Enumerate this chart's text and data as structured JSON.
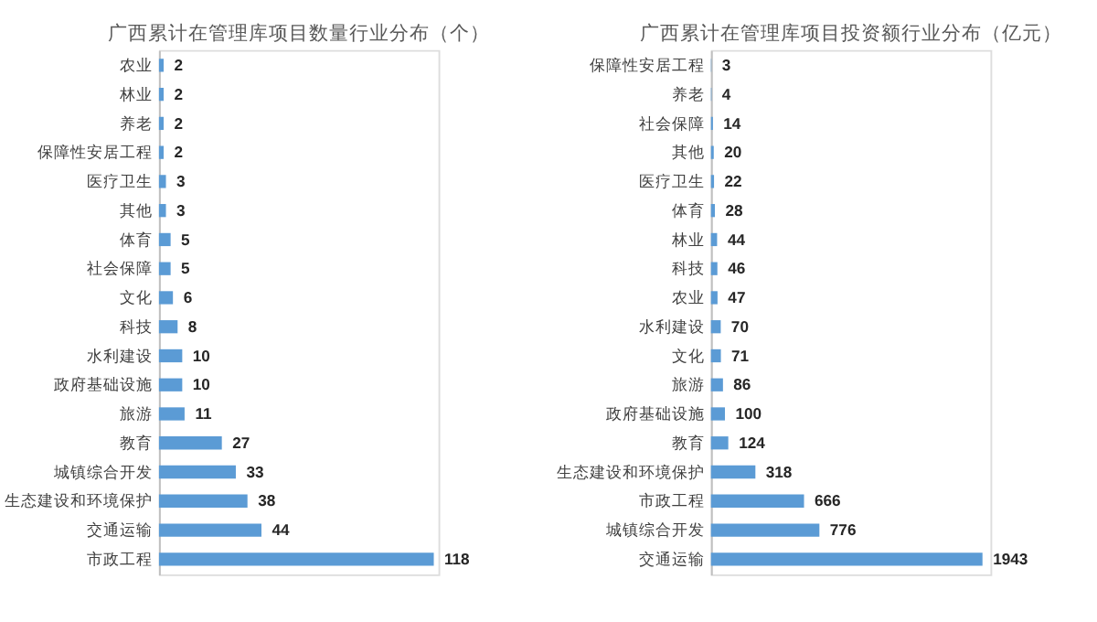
{
  "chart_data": [
    {
      "type": "bar",
      "orientation": "horizontal",
      "title": "广西累计在管理库项目数量行业分布（个）",
      "categories": [
        "农业",
        "林业",
        "养老",
        "保障性安居工程",
        "医疗卫生",
        "其他",
        "体育",
        "社会保障",
        "文化",
        "科技",
        "水利建设",
        "政府基础设施",
        "旅游",
        "教育",
        "城镇综合开发",
        "生态建设和环境保护",
        "交通运输",
        "市政工程"
      ],
      "values": [
        2,
        2,
        2,
        2,
        3,
        3,
        5,
        5,
        6,
        8,
        10,
        10,
        11,
        27,
        33,
        38,
        44,
        118
      ],
      "color": "#5b9bd5",
      "data_labels": true,
      "tick_labels": "y"
    },
    {
      "type": "bar",
      "orientation": "horizontal",
      "title": "广西累计在管理库项目投资额行业分布（亿元）",
      "categories": [
        "保障性安居工程",
        "养老",
        "社会保障",
        "其他",
        "医疗卫生",
        "体育",
        "林业",
        "科技",
        "农业",
        "水利建设",
        "文化",
        "旅游",
        "政府基础设施",
        "教育",
        "生态建设和环境保护",
        "市政工程",
        "城镇综合开发",
        "交通运输"
      ],
      "values": [
        3,
        4,
        14,
        20,
        22,
        28,
        44,
        46,
        47,
        70,
        71,
        86,
        100,
        124,
        318,
        666,
        776,
        1943
      ],
      "color": "#5b9bd5",
      "data_labels": true,
      "tick_labels": "y"
    }
  ]
}
